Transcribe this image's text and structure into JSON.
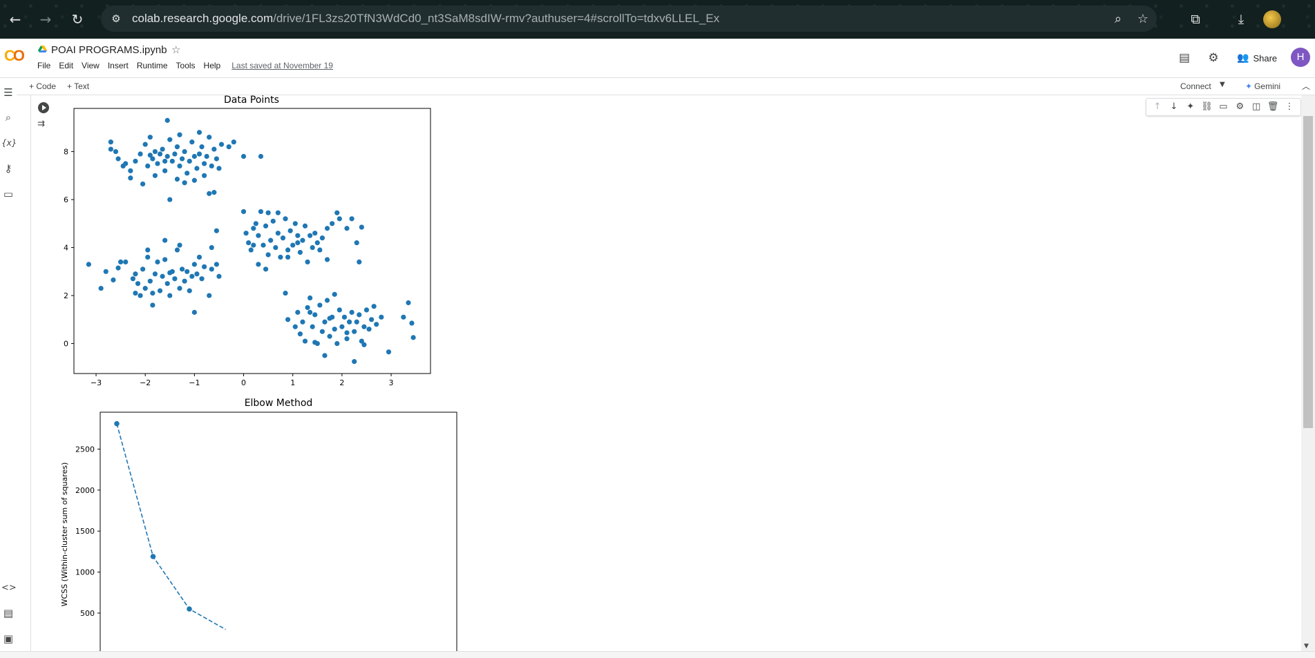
{
  "browser": {
    "back_icon": "arrow-left-icon",
    "forward_icon": "arrow-right-icon",
    "reload_icon": "reload-icon",
    "url_host": "colab.research.google.com",
    "url_path": "/drive/1FL3zs20TfN3WdCd0_nt3SaM8sdIW-rmv?authuser=4#scrollTo=tdxv6LLEL_Ex"
  },
  "header": {
    "notebook_title": "POAI PROGRAMS.ipynb",
    "menu": [
      "File",
      "Edit",
      "View",
      "Insert",
      "Runtime",
      "Tools",
      "Help"
    ],
    "last_saved": "Last saved at November 19",
    "share_label": "Share",
    "user_initial": "H"
  },
  "toolbar": {
    "code_label": "+ Code",
    "text_label": "+ Text",
    "connect_label": "Connect",
    "gemini_label": "Gemini"
  },
  "colors": {
    "points": "#1f77b4",
    "logo_yellow": "#f9ab00",
    "logo_orange": "#e8710a",
    "avatar": "#7e57c2"
  },
  "chart_data": [
    {
      "type": "scatter",
      "title": "Data Points",
      "xlabel": "",
      "ylabel": "",
      "xlim": [
        -3.45,
        3.8
      ],
      "ylim": [
        -1.25,
        9.8
      ],
      "xticks": [
        -3,
        -2,
        -1,
        0,
        1,
        2,
        3
      ],
      "yticks": [
        0,
        2,
        4,
        6,
        8
      ],
      "xtick_labels": [
        "−3",
        "−2",
        "−1",
        "0",
        "1",
        "2",
        "3"
      ],
      "ytick_labels": [
        "0",
        "2",
        "4",
        "6",
        "8"
      ],
      "points": [
        [
          -2.7,
          8.1
        ],
        [
          -2.6,
          8.0
        ],
        [
          -2.55,
          7.7
        ],
        [
          -2.4,
          7.5
        ],
        [
          -2.3,
          7.2
        ],
        [
          -2.2,
          7.6
        ],
        [
          -2.1,
          7.9
        ],
        [
          -2.0,
          8.3
        ],
        [
          -1.95,
          7.4
        ],
        [
          -1.9,
          8.6
        ],
        [
          -1.85,
          7.7
        ],
        [
          -1.8,
          8.0
        ],
        [
          -1.75,
          7.5
        ],
        [
          -1.7,
          7.9
        ],
        [
          -1.65,
          8.1
        ],
        [
          -1.6,
          7.2
        ],
        [
          -1.55,
          7.8
        ],
        [
          -1.5,
          8.5
        ],
        [
          -1.45,
          7.6
        ],
        [
          -1.4,
          7.9
        ],
        [
          -1.35,
          8.2
        ],
        [
          -1.3,
          7.4
        ],
        [
          -1.25,
          7.7
        ],
        [
          -1.2,
          8.0
        ],
        [
          -1.15,
          7.1
        ],
        [
          -1.1,
          7.6
        ],
        [
          -1.05,
          8.4
        ],
        [
          -1.0,
          7.8
        ],
        [
          -0.95,
          7.3
        ],
        [
          -0.9,
          7.9
        ],
        [
          -0.85,
          8.2
        ],
        [
          -0.8,
          7.5
        ],
        [
          -0.75,
          7.8
        ],
        [
          -0.7,
          8.6
        ],
        [
          -0.65,
          7.4
        ],
        [
          -0.6,
          8.1
        ],
        [
          -0.55,
          7.7
        ],
        [
          -0.5,
          7.3
        ],
        [
          -0.45,
          8.3
        ],
        [
          -0.3,
          8.2
        ],
        [
          -0.2,
          8.4
        ],
        [
          -1.55,
          9.3
        ],
        [
          -2.45,
          7.4
        ],
        [
          -2.3,
          6.9
        ],
        [
          -2.05,
          6.65
        ],
        [
          -1.8,
          7.0
        ],
        [
          -1.35,
          6.85
        ],
        [
          -1.2,
          6.7
        ],
        [
          -1.0,
          6.8
        ],
        [
          -0.8,
          7.0
        ],
        [
          -0.7,
          6.25
        ],
        [
          -0.6,
          6.3
        ],
        [
          -1.5,
          6.0
        ],
        [
          0.0,
          7.8
        ],
        [
          0.35,
          7.8
        ],
        [
          -2.7,
          8.4
        ],
        [
          -1.3,
          8.7
        ],
        [
          -0.9,
          8.8
        ],
        [
          -1.9,
          7.85
        ],
        [
          -1.6,
          7.6
        ],
        [
          0.0,
          5.5
        ],
        [
          0.05,
          4.6
        ],
        [
          0.1,
          4.2
        ],
        [
          0.15,
          3.9
        ],
        [
          0.2,
          4.8
        ],
        [
          0.25,
          5.0
        ],
        [
          0.3,
          4.5
        ],
        [
          0.35,
          5.5
        ],
        [
          0.4,
          4.1
        ],
        [
          0.45,
          4.9
        ],
        [
          0.5,
          3.7
        ],
        [
          0.55,
          4.3
        ],
        [
          0.6,
          5.1
        ],
        [
          0.65,
          4.0
        ],
        [
          0.7,
          4.6
        ],
        [
          0.75,
          3.6
        ],
        [
          0.8,
          4.4
        ],
        [
          0.85,
          5.2
        ],
        [
          0.9,
          3.9
        ],
        [
          0.95,
          4.7
        ],
        [
          1.0,
          4.1
        ],
        [
          1.05,
          5.0
        ],
        [
          1.1,
          4.5
        ],
        [
          1.15,
          3.8
        ],
        [
          1.2,
          4.3
        ],
        [
          1.25,
          4.9
        ],
        [
          1.3,
          3.4
        ],
        [
          1.35,
          4.5
        ],
        [
          1.4,
          4.0
        ],
        [
          1.45,
          4.6
        ],
        [
          1.5,
          4.2
        ],
        [
          1.55,
          3.9
        ],
        [
          1.6,
          4.4
        ],
        [
          1.7,
          4.8
        ],
        [
          1.8,
          5.0
        ],
        [
          1.9,
          5.45
        ],
        [
          1.95,
          5.2
        ],
        [
          2.1,
          4.8
        ],
        [
          2.2,
          5.2
        ],
        [
          2.3,
          4.2
        ],
        [
          2.35,
          3.4
        ],
        [
          2.4,
          4.85
        ],
        [
          1.7,
          3.5
        ],
        [
          0.5,
          5.45
        ],
        [
          0.7,
          5.45
        ],
        [
          0.3,
          3.3
        ],
        [
          0.45,
          3.1
        ],
        [
          0.9,
          3.6
        ],
        [
          1.1,
          4.2
        ],
        [
          0.2,
          4.1
        ],
        [
          -3.15,
          3.3
        ],
        [
          -2.9,
          2.3
        ],
        [
          -2.8,
          3.0
        ],
        [
          -2.65,
          2.65
        ],
        [
          -2.55,
          3.15
        ],
        [
          -2.4,
          3.4
        ],
        [
          -2.25,
          2.7
        ],
        [
          -2.2,
          2.9
        ],
        [
          -2.15,
          2.5
        ],
        [
          -2.1,
          2.0
        ],
        [
          -2.05,
          3.1
        ],
        [
          -2.0,
          2.3
        ],
        [
          -1.95,
          3.6
        ],
        [
          -1.9,
          2.6
        ],
        [
          -1.85,
          2.1
        ],
        [
          -1.8,
          2.9
        ],
        [
          -1.75,
          3.4
        ],
        [
          -1.7,
          2.2
        ],
        [
          -1.65,
          2.8
        ],
        [
          -1.6,
          3.5
        ],
        [
          -1.55,
          2.5
        ],
        [
          -1.5,
          2.0
        ],
        [
          -1.45,
          3.0
        ],
        [
          -1.4,
          2.7
        ],
        [
          -1.35,
          3.9
        ],
        [
          -1.3,
          2.3
        ],
        [
          -1.25,
          3.1
        ],
        [
          -1.2,
          2.6
        ],
        [
          -1.15,
          3.0
        ],
        [
          -1.1,
          2.2
        ],
        [
          -1.05,
          2.8
        ],
        [
          -1.0,
          3.3
        ],
        [
          -0.95,
          2.9
        ],
        [
          -0.9,
          3.6
        ],
        [
          -0.85,
          2.7
        ],
        [
          -0.8,
          3.2
        ],
        [
          -0.7,
          2.0
        ],
        [
          -0.65,
          3.1
        ],
        [
          -0.55,
          3.3
        ],
        [
          -0.5,
          2.8
        ],
        [
          -0.55,
          4.7
        ],
        [
          -0.65,
          4.0
        ],
        [
          -1.3,
          4.1
        ],
        [
          -1.6,
          4.3
        ],
        [
          -1.95,
          3.9
        ],
        [
          -1.0,
          1.3
        ],
        [
          -1.85,
          1.6
        ],
        [
          -2.2,
          2.1
        ],
        [
          -1.5,
          2.95
        ],
        [
          -2.5,
          3.4
        ],
        [
          0.85,
          2.1
        ],
        [
          0.9,
          1.0
        ],
        [
          1.05,
          0.7
        ],
        [
          1.1,
          1.3
        ],
        [
          1.15,
          0.4
        ],
        [
          1.2,
          0.9
        ],
        [
          1.25,
          0.1
        ],
        [
          1.3,
          1.5
        ],
        [
          1.35,
          1.9
        ],
        [
          1.4,
          0.7
        ],
        [
          1.45,
          1.2
        ],
        [
          1.5,
          0.0
        ],
        [
          1.55,
          1.6
        ],
        [
          1.6,
          0.5
        ],
        [
          1.65,
          0.9
        ],
        [
          1.7,
          1.8
        ],
        [
          1.75,
          0.3
        ],
        [
          1.8,
          1.1
        ],
        [
          1.85,
          0.6
        ],
        [
          1.9,
          0.0
        ],
        [
          1.95,
          1.4
        ],
        [
          2.0,
          0.7
        ],
        [
          2.05,
          1.1
        ],
        [
          2.1,
          0.2
        ],
        [
          2.15,
          0.9
        ],
        [
          2.2,
          1.3
        ],
        [
          2.25,
          0.5
        ],
        [
          2.3,
          0.9
        ],
        [
          2.35,
          1.2
        ],
        [
          2.4,
          0.1
        ],
        [
          2.45,
          0.7
        ],
        [
          2.5,
          1.4
        ],
        [
          2.55,
          0.6
        ],
        [
          2.6,
          1.0
        ],
        [
          2.65,
          1.55
        ],
        [
          2.7,
          0.8
        ],
        [
          2.8,
          1.1
        ],
        [
          2.95,
          -0.35
        ],
        [
          3.25,
          1.1
        ],
        [
          3.35,
          1.7
        ],
        [
          3.42,
          0.85
        ],
        [
          3.45,
          0.25
        ],
        [
          1.85,
          2.05
        ],
        [
          1.65,
          -0.5
        ],
        [
          2.25,
          -0.75
        ],
        [
          2.45,
          -0.05
        ],
        [
          1.45,
          0.05
        ],
        [
          2.1,
          0.45
        ],
        [
          1.75,
          1.05
        ],
        [
          1.35,
          1.3
        ]
      ]
    },
    {
      "type": "line",
      "title": "Elbow Method",
      "xlabel": "",
      "ylabel": "WCSS (Within-cluster sum of squares)",
      "ylim": [
        -250,
        2950
      ],
      "yticks": [
        500,
        1000,
        1500,
        2000,
        2500
      ],
      "x": [
        1,
        2,
        3,
        4
      ],
      "values": [
        2810,
        1190,
        550,
        300
      ],
      "line_style": "dashed",
      "marker": "o"
    }
  ]
}
